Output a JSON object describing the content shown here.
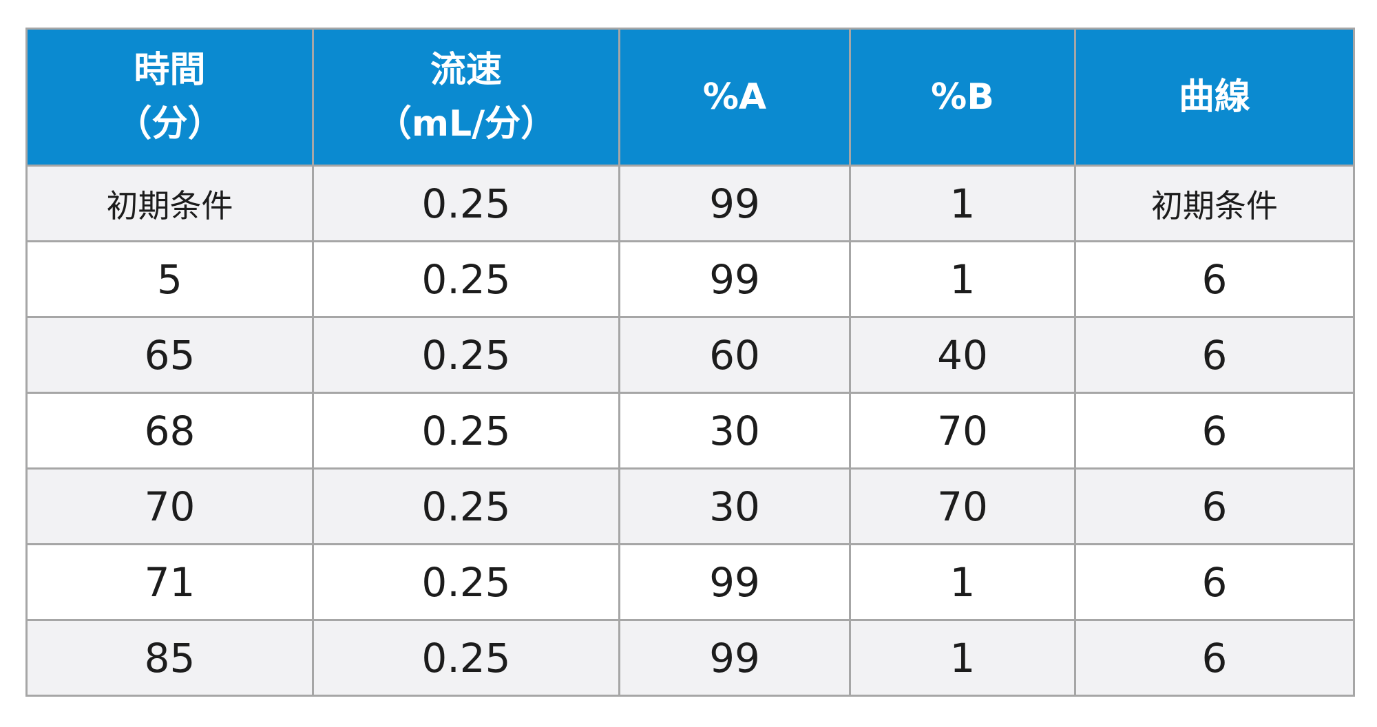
{
  "table": {
    "headers": [
      {
        "line1": "時間",
        "line2": "（分）"
      },
      {
        "line1": "流速",
        "line2": "（mL/分）"
      },
      {
        "line1": "%A",
        "line2": ""
      },
      {
        "line1": "%B",
        "line2": ""
      },
      {
        "line1": "曲線",
        "line2": ""
      }
    ],
    "rows": [
      [
        "初期条件",
        "0.25",
        "99",
        "1",
        "初期条件"
      ],
      [
        "5",
        "0.25",
        "99",
        "1",
        "6"
      ],
      [
        "65",
        "0.25",
        "60",
        "40",
        "6"
      ],
      [
        "68",
        "0.25",
        "30",
        "70",
        "6"
      ],
      [
        "70",
        "0.25",
        "30",
        "70",
        "6"
      ],
      [
        "71",
        "0.25",
        "99",
        "1",
        "6"
      ],
      [
        "85",
        "0.25",
        "99",
        "1",
        "6"
      ]
    ]
  },
  "colors": {
    "header_bg": "#0b8ad0",
    "header_text": "#ffffff",
    "row_alt_bg": "#f2f2f4",
    "row_bg": "#ffffff",
    "border": "#a6a6a6",
    "cell_text": "#1c1c1c"
  }
}
